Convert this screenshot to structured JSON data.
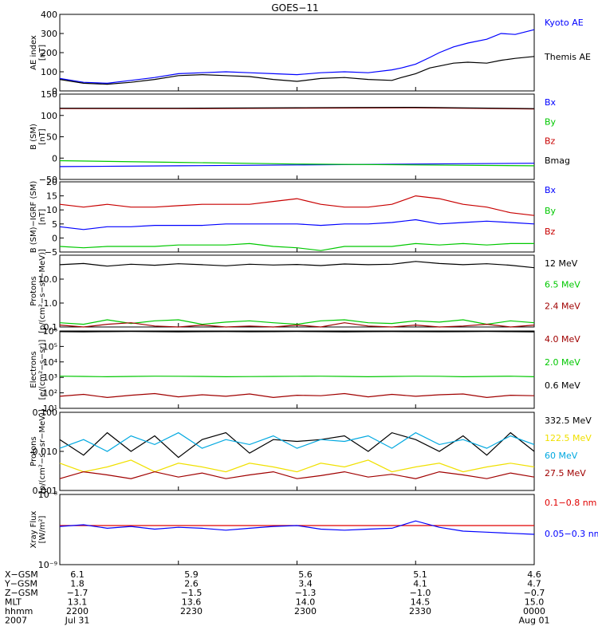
{
  "title": "GOES−11",
  "colors": {
    "black": "#000000",
    "blue": "#0000ff",
    "green": "#00c800",
    "red": "#c80000",
    "darkred": "#a00000",
    "cyan": "#00a8e0",
    "yellow": "#f0e000",
    "redline": "#e00000"
  },
  "x_time_labels": [
    "2200",
    "2230",
    "2300",
    "2330",
    "0000"
  ],
  "chart_data": [
    {
      "id": "ae",
      "type": "line",
      "ylabel": "AE index\n[nT]",
      "ylim": [
        0,
        400
      ],
      "yticks": [
        "0",
        "100",
        "200",
        "300",
        "400"
      ],
      "x": [
        0,
        0.05,
        0.1,
        0.15,
        0.2,
        0.25,
        0.3,
        0.35,
        0.4,
        0.45,
        0.5,
        0.55,
        0.6,
        0.65,
        0.7,
        0.72,
        0.75,
        0.78,
        0.8,
        0.83,
        0.86,
        0.9,
        0.93,
        0.96,
        1.0
      ],
      "series": [
        {
          "name": "Kyoto AE",
          "color": "blue",
          "values": [
            65,
            45,
            40,
            55,
            70,
            90,
            95,
            100,
            95,
            90,
            85,
            95,
            100,
            95,
            110,
            120,
            140,
            175,
            200,
            230,
            250,
            270,
            300,
            295,
            320
          ]
        },
        {
          "name": "Themis AE",
          "color": "black",
          "values": [
            60,
            40,
            35,
            45,
            60,
            80,
            85,
            80,
            75,
            60,
            50,
            65,
            70,
            60,
            55,
            70,
            90,
            120,
            130,
            145,
            150,
            145,
            160,
            170,
            180
          ]
        }
      ]
    },
    {
      "id": "b_sm",
      "type": "line",
      "ylabel": "B (SM)\n[nT]",
      "ylim": [
        -50,
        150
      ],
      "yticks": [
        "−50",
        "0",
        "50",
        "100",
        "150"
      ],
      "x": [
        0,
        0.25,
        0.5,
        0.75,
        1.0
      ],
      "series": [
        {
          "name": "Bx",
          "color": "blue",
          "values": [
            -20,
            -18,
            -16,
            -14,
            -12
          ]
        },
        {
          "name": "By",
          "color": "green",
          "values": [
            -6,
            -10,
            -14,
            -16,
            -18
          ]
        },
        {
          "name": "Bz",
          "color": "red",
          "values": [
            116,
            116,
            117,
            118,
            115
          ]
        },
        {
          "name": "Bmag",
          "color": "black",
          "values": [
            117,
            117,
            118,
            119,
            116
          ]
        }
      ]
    },
    {
      "id": "b_igrf",
      "type": "line",
      "ylabel": "B (SM)−IGRF (SM)\n[nT]",
      "ylim": [
        -5,
        20
      ],
      "yticks": [
        "−5",
        "0",
        "5",
        "10",
        "15",
        "20"
      ],
      "x": [
        0,
        0.05,
        0.1,
        0.15,
        0.2,
        0.25,
        0.3,
        0.35,
        0.4,
        0.45,
        0.5,
        0.55,
        0.6,
        0.65,
        0.7,
        0.75,
        0.8,
        0.85,
        0.9,
        0.95,
        1.0
      ],
      "series": [
        {
          "name": "Bx",
          "color": "blue",
          "values": [
            4,
            3,
            4,
            4,
            4.5,
            4.5,
            4.5,
            5,
            5,
            5,
            5,
            4.5,
            5,
            5,
            5.5,
            6.5,
            5,
            5.5,
            6,
            5.5,
            5
          ]
        },
        {
          "name": "By",
          "color": "green",
          "values": [
            -3,
            -3.5,
            -3,
            -3,
            -3,
            -2.5,
            -2.5,
            -2.5,
            -2,
            -3,
            -3.5,
            -4.5,
            -3,
            -3,
            -3,
            -2,
            -2.5,
            -2,
            -2.5,
            -2,
            -2
          ]
        },
        {
          "name": "Bz",
          "color": "red",
          "values": [
            12,
            11,
            12,
            11,
            11,
            11.5,
            12,
            12,
            12,
            13,
            14,
            12,
            11,
            11,
            12,
            15,
            14,
            12,
            11,
            9,
            8
          ]
        }
      ]
    },
    {
      "id": "protons_low",
      "type": "line",
      "ylabel": "Protons\n[p/(cm²−s−sr−MeV)]",
      "yscale": "log",
      "ylim": [
        0.1,
        100
      ],
      "yticks": [
        "0.1",
        "1.0",
        "10.0"
      ],
      "x": [
        0,
        0.05,
        0.1,
        0.15,
        0.2,
        0.25,
        0.3,
        0.35,
        0.4,
        0.45,
        0.5,
        0.55,
        0.6,
        0.65,
        0.7,
        0.75,
        0.8,
        0.85,
        0.9,
        0.95,
        1.0
      ],
      "series": [
        {
          "name": "12 MeV",
          "color": "black",
          "values": [
            40,
            45,
            35,
            42,
            38,
            44,
            40,
            36,
            42,
            39,
            41,
            37,
            43,
            40,
            42,
            55,
            45,
            40,
            44,
            38,
            30
          ]
        },
        {
          "name": "6.5 MeV",
          "color": "green",
          "values": [
            0.15,
            0.13,
            0.2,
            0.14,
            0.18,
            0.2,
            0.13,
            0.16,
            0.18,
            0.15,
            0.13,
            0.18,
            0.2,
            0.15,
            0.14,
            0.18,
            0.16,
            0.2,
            0.13,
            0.18,
            0.15
          ]
        },
        {
          "name": "2.4 MeV",
          "color": "darkred",
          "values": [
            0.12,
            0.1,
            0.13,
            0.15,
            0.11,
            0.1,
            0.12,
            0.1,
            0.11,
            0.1,
            0.12,
            0.1,
            0.15,
            0.11,
            0.1,
            0.12,
            0.1,
            0.11,
            0.13,
            0.1,
            0.12
          ]
        }
      ]
    },
    {
      "id": "electrons",
      "type": "line",
      "ylabel": "Electrons\n[e/(cm²−s−sr)]",
      "yscale": "log",
      "ylim": [
        10,
        1000000
      ],
      "yticks": [
        "10¹",
        "10²",
        "10³",
        "10⁴",
        "10⁵",
        "10⁶"
      ],
      "x": [
        0,
        0.05,
        0.1,
        0.15,
        0.2,
        0.25,
        0.3,
        0.35,
        0.4,
        0.45,
        0.5,
        0.55,
        0.6,
        0.65,
        0.7,
        0.75,
        0.8,
        0.85,
        0.9,
        0.95,
        1.0
      ],
      "series": [
        {
          "name": "4.0 MeV",
          "color": "darkred",
          "values": [
            60,
            80,
            50,
            70,
            90,
            55,
            75,
            60,
            85,
            50,
            70,
            65,
            90,
            55,
            80,
            60,
            75,
            85,
            50,
            70,
            65
          ]
        },
        {
          "name": "2.0 MeV",
          "color": "green",
          "values": [
            1200,
            1150,
            1100,
            1150,
            1200,
            1180,
            1150,
            1100,
            1120,
            1150,
            1180,
            1200,
            1150,
            1100,
            1150,
            1200,
            1180,
            1100,
            1150,
            1200,
            1100
          ]
        },
        {
          "name": "0.6 MeV",
          "color": "black",
          "values": [
            900000,
            880000,
            900000,
            920000,
            900000,
            880000,
            900000,
            910000,
            890000,
            900000,
            920000,
            900000,
            880000,
            900000,
            910000,
            900000,
            890000,
            900000,
            920000,
            900000,
            880000
          ]
        }
      ]
    },
    {
      "id": "protons_high",
      "type": "line",
      "ylabel": "Protons\n[p/(cm²−s−sr−MeV)]",
      "yscale": "log",
      "ylim": [
        0.001,
        0.1
      ],
      "yticks": [
        "0.001",
        "0.010",
        "0.100"
      ],
      "x": [
        0,
        0.05,
        0.1,
        0.15,
        0.2,
        0.25,
        0.3,
        0.35,
        0.4,
        0.45,
        0.5,
        0.55,
        0.6,
        0.65,
        0.7,
        0.75,
        0.8,
        0.85,
        0.9,
        0.95,
        1.0
      ],
      "series": [
        {
          "name": "332.5 MeV",
          "color": "black",
          "values": [
            0.02,
            0.008,
            0.03,
            0.01,
            0.025,
            0.007,
            0.02,
            0.03,
            0.009,
            0.02,
            0.018,
            0.02,
            0.025,
            0.01,
            0.03,
            0.02,
            0.01,
            0.025,
            0.008,
            0.03,
            0.01
          ]
        },
        {
          "name": "122.5 MeV",
          "color": "yellow",
          "values": [
            0.005,
            0.003,
            0.004,
            0.006,
            0.003,
            0.005,
            0.004,
            0.003,
            0.005,
            0.004,
            0.003,
            0.005,
            0.004,
            0.006,
            0.003,
            0.004,
            0.005,
            0.003,
            0.004,
            0.005,
            0.004
          ]
        },
        {
          "name": "60 MeV",
          "color": "cyan",
          "values": [
            0.012,
            0.02,
            0.01,
            0.025,
            0.015,
            0.03,
            0.012,
            0.02,
            0.015,
            0.025,
            0.012,
            0.02,
            0.018,
            0.025,
            0.012,
            0.03,
            0.015,
            0.02,
            0.012,
            0.025,
            0.015
          ]
        },
        {
          "name": "27.5 MeV",
          "color": "darkred",
          "values": [
            0.002,
            0.003,
            0.0025,
            0.002,
            0.003,
            0.0022,
            0.0028,
            0.002,
            0.0025,
            0.003,
            0.002,
            0.0024,
            0.003,
            0.0022,
            0.0026,
            0.002,
            0.003,
            0.0025,
            0.002,
            0.0028,
            0.0022
          ]
        }
      ]
    },
    {
      "id": "xray",
      "type": "line",
      "ylabel": "Xray Flux\n[W/m²]",
      "yscale": "log",
      "ylim": [
        1e-09,
        1e-08
      ],
      "yticks": [
        "10⁻⁹",
        "10⁻⁸"
      ],
      "x": [
        0,
        0.05,
        0.1,
        0.15,
        0.2,
        0.25,
        0.3,
        0.35,
        0.4,
        0.45,
        0.5,
        0.55,
        0.6,
        0.65,
        0.7,
        0.75,
        0.8,
        0.85,
        0.9,
        0.95,
        1.0
      ],
      "series": [
        {
          "name": "0.1−0.8 nm",
          "color": "redline",
          "values": [
            3.6e-09,
            3.6e-09,
            3.6e-09,
            3.6e-09,
            3.6e-09,
            3.6e-09,
            3.6e-09,
            3.6e-09,
            3.6e-09,
            3.6e-09,
            3.6e-09,
            3.6e-09,
            3.6e-09,
            3.6e-09,
            3.6e-09,
            3.6e-09,
            3.6e-09,
            3.6e-09,
            3.6e-09,
            3.6e-09,
            3.6e-09
          ]
        },
        {
          "name": "0.05−0.3 nm",
          "color": "blue",
          "values": [
            3.5e-09,
            3.7e-09,
            3.3e-09,
            3.5e-09,
            3.2e-09,
            3.4e-09,
            3.3e-09,
            3.1e-09,
            3.3e-09,
            3.5e-09,
            3.6e-09,
            3.2e-09,
            3.1e-09,
            3.2e-09,
            3.3e-09,
            4.2e-09,
            3.4e-09,
            3e-09,
            2.9e-09,
            2.8e-09,
            2.7e-09
          ]
        }
      ]
    }
  ],
  "ephemeris": {
    "rows": [
      {
        "label": "X−GSM",
        "values": [
          "6.1",
          "5.9",
          "5.6",
          "5.1",
          "4.6"
        ]
      },
      {
        "label": "Y−GSM",
        "values": [
          "1.8",
          "2.6",
          "3.4",
          "4.1",
          "4.7"
        ]
      },
      {
        "label": "Z−GSM",
        "values": [
          "−1.7",
          "−1.5",
          "−1.3",
          "−1.0",
          "−0.7"
        ]
      },
      {
        "label": "MLT",
        "values": [
          "13.1",
          "13.6",
          "14.0",
          "14.5",
          "15.0"
        ]
      },
      {
        "label": "hhmm",
        "values": [
          "2200",
          "2230",
          "2300",
          "2330",
          "0000"
        ]
      },
      {
        "label": "2007",
        "values": [
          "Jul 31",
          "",
          "",
          "",
          "Aug 01"
        ]
      }
    ]
  }
}
